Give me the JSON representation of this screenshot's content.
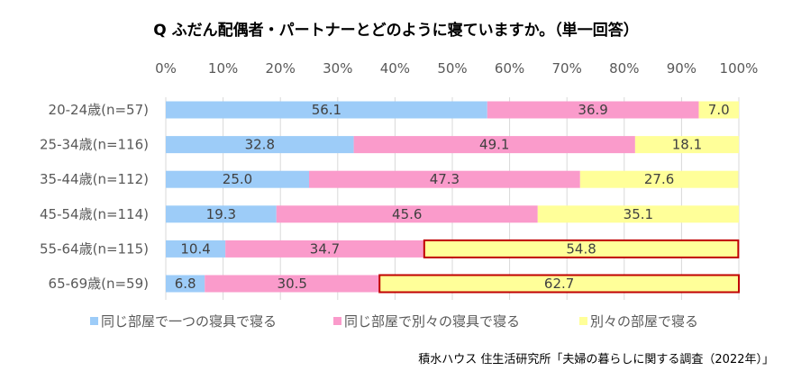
{
  "chart_data": {
    "type": "bar",
    "orientation": "horizontal",
    "stacked": true,
    "title": "Q ふだん配偶者・パートナーとどのように寝ていますか。（単一回答）",
    "source": "積水ハウス 住生活研究所「夫婦の暮らしに関する調査（2022年）」",
    "xlim": [
      0,
      100
    ],
    "x_ticks": [
      "0%",
      "10%",
      "20%",
      "30%",
      "40%",
      "50%",
      "60%",
      "70%",
      "80%",
      "90%",
      "100%"
    ],
    "grid": "vertical",
    "legend_position": "bottom",
    "categories": [
      "20-24歳(n=57)",
      "25-34歳(n=116)",
      "35-44歳(n=112)",
      "45-54歳(n=114)",
      "55-64歳(n=115)",
      "65-69歳(n=59)"
    ],
    "series": [
      {
        "name": "同じ部屋で一つの寝具で寝る",
        "color": "#9DCCF8",
        "values": [
          56.1,
          32.8,
          25.0,
          19.3,
          10.4,
          6.8
        ]
      },
      {
        "name": "同じ部屋で別々の寝具で寝る",
        "color": "#FA9BCB",
        "values": [
          36.9,
          49.1,
          47.3,
          45.6,
          34.7,
          30.5
        ]
      },
      {
        "name": "別々の部屋で寝る",
        "color": "#FFFF99",
        "values": [
          7.0,
          18.1,
          27.6,
          35.1,
          54.8,
          62.7
        ]
      }
    ],
    "highlighted": [
      {
        "category": "55-64歳(n=115)",
        "series": "別々の部屋で寝る"
      },
      {
        "category": "65-69歳(n=59)",
        "series": "別々の部屋で寝る"
      }
    ],
    "highlight_color": "#C00000"
  }
}
